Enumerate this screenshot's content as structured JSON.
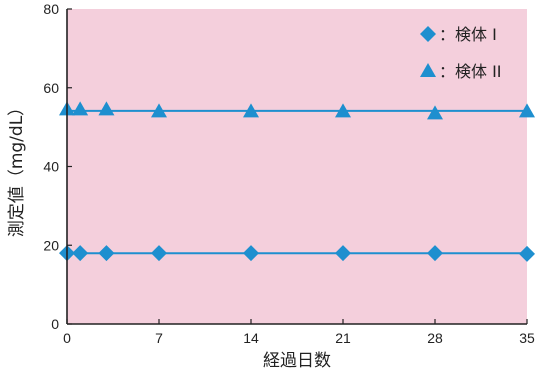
{
  "chart_data": {
    "type": "line",
    "xlabel": "経過日数",
    "ylabel": "測定値（mg/dL）",
    "xlim": [
      0,
      35
    ],
    "ylim": [
      0,
      80
    ],
    "x_ticks": [
      0,
      7,
      14,
      21,
      28,
      35
    ],
    "y_ticks": [
      0,
      20,
      40,
      60,
      80
    ],
    "grid": false,
    "legend_position": "top-right",
    "plot_background": "#f4cfdc",
    "series": [
      {
        "name": "：検体 I",
        "marker": "diamond",
        "color": "#1e8fcf",
        "x": [
          0,
          1,
          3,
          7,
          14,
          21,
          28,
          35
        ],
        "y": [
          18,
          18,
          18,
          18,
          18,
          18,
          18,
          17.8
        ]
      },
      {
        "name": "：検体 II",
        "marker": "triangle",
        "color": "#1e8fcf",
        "x": [
          0,
          1,
          3,
          7,
          14,
          21,
          28,
          35
        ],
        "y": [
          54.5,
          54.5,
          54.5,
          54,
          54,
          54,
          53.5,
          54
        ]
      }
    ]
  }
}
